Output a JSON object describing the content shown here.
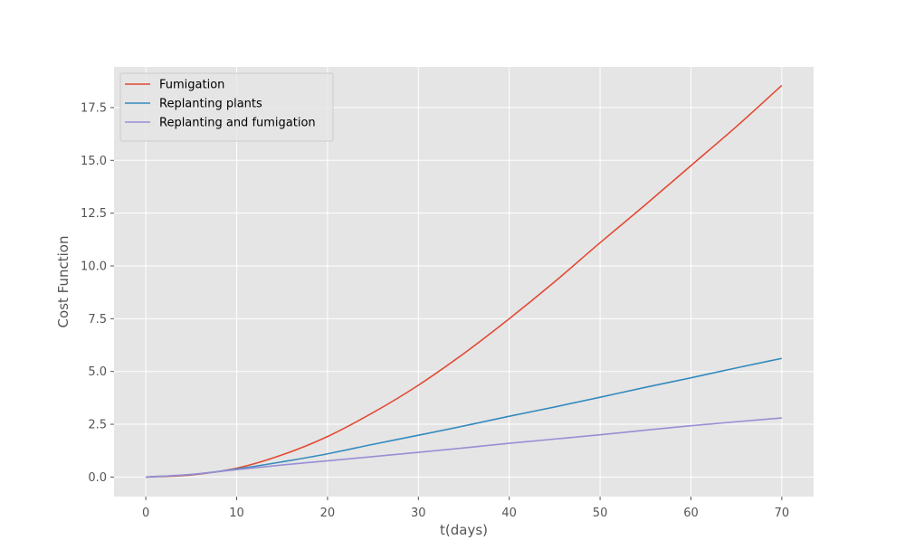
{
  "chart_data": {
    "type": "line",
    "title": "",
    "xlabel": "t(days)",
    "ylabel": "Cost Function",
    "xlim": [
      -3.5,
      73.5
    ],
    "ylim": [
      -0.925,
      19.425
    ],
    "xticks": [
      0,
      10,
      20,
      30,
      40,
      50,
      60,
      70
    ],
    "yticks": [
      0.0,
      2.5,
      5.0,
      7.5,
      10.0,
      12.5,
      15.0,
      17.5
    ],
    "xtick_labels": [
      "0",
      "10",
      "20",
      "30",
      "40",
      "50",
      "60",
      "70"
    ],
    "ytick_labels": [
      "0.0",
      "2.5",
      "5.0",
      "7.5",
      "10.0",
      "12.5",
      "15.0",
      "17.5"
    ],
    "grid": true,
    "legend_position": "top-left",
    "series": [
      {
        "name": "Fumigation",
        "color": "#E24A33",
        "x": [
          0,
          5,
          10,
          15,
          20,
          25,
          30,
          35,
          40,
          45,
          50,
          55,
          60,
          65,
          70
        ],
        "y": [
          0.0,
          0.1,
          0.42,
          1.05,
          1.92,
          3.05,
          4.35,
          5.85,
          7.5,
          9.25,
          11.1,
          12.9,
          14.75,
          16.6,
          18.55
        ]
      },
      {
        "name": "Replanting plants",
        "color": "#348ABD",
        "x": [
          0,
          5,
          10,
          15,
          20,
          25,
          30,
          35,
          40,
          45,
          50,
          55,
          60,
          65,
          70
        ],
        "y": [
          0.0,
          0.12,
          0.38,
          0.72,
          1.1,
          1.55,
          1.98,
          2.42,
          2.88,
          3.32,
          3.78,
          4.25,
          4.7,
          5.17,
          5.62
        ]
      },
      {
        "name": "Replanting and fumigation",
        "color": "#988ED5",
        "x": [
          0,
          5,
          10,
          15,
          20,
          25,
          30,
          35,
          40,
          45,
          50,
          55,
          60,
          65,
          70
        ],
        "y": [
          0.0,
          0.13,
          0.35,
          0.57,
          0.77,
          0.97,
          1.17,
          1.38,
          1.6,
          1.8,
          2.0,
          2.22,
          2.43,
          2.62,
          2.8
        ]
      }
    ]
  }
}
